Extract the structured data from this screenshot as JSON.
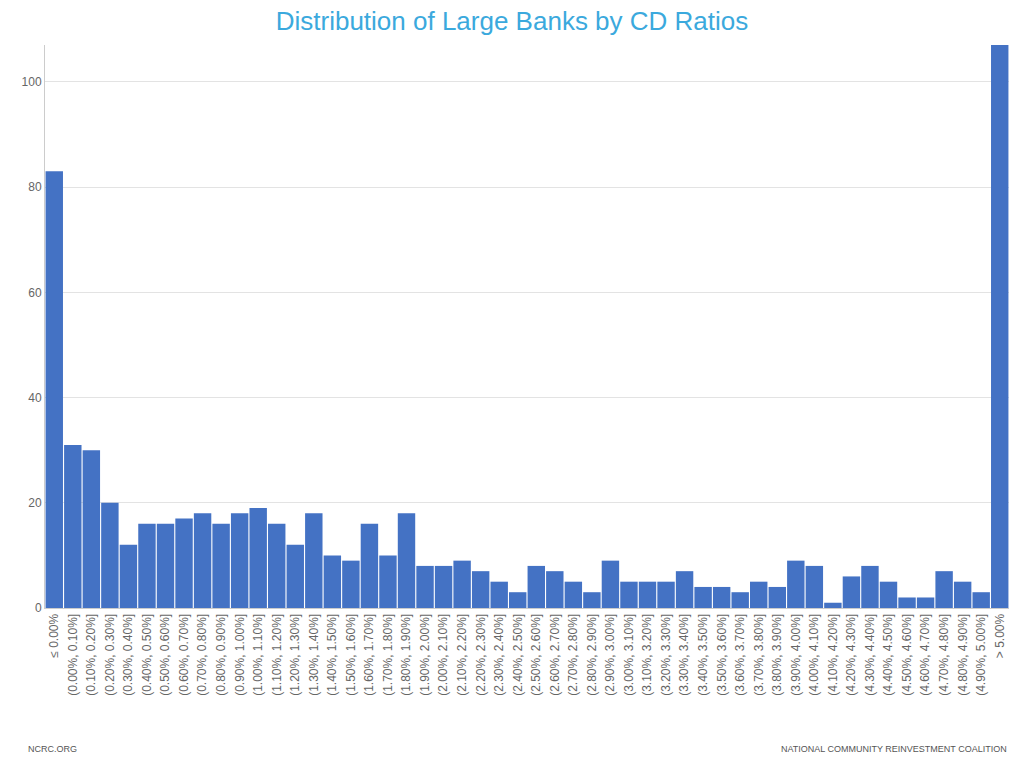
{
  "chart_data": {
    "type": "bar",
    "title": "Distribution of Large Banks by CD Ratios",
    "categories": [
      "≤ 0.00%",
      "(0.00%, 0.10%]",
      "(0.10%, 0.20%]",
      "(0.20%, 0.30%]",
      "(0.30%, 0.40%]",
      "(0.40%, 0.50%]",
      "(0.50%, 0.60%]",
      "(0.60%, 0.70%]",
      "(0.70%, 0.80%]",
      "(0.80%, 0.90%]",
      "(0.90%, 1.00%]",
      "(1.00%, 1.10%]",
      "(1.10%, 1.20%]",
      "(1.20%, 1.30%]",
      "(1.30%, 1.40%]",
      "(1.40%, 1.50%]",
      "(1.50%, 1.60%]",
      "(1.60%, 1.70%]",
      "(1.70%, 1.80%]",
      "(1.80%, 1.90%]",
      "(1.90%, 2.00%]",
      "(2.00%, 2.10%]",
      "(2.10%, 2.20%]",
      "(2.20%, 2.30%]",
      "(2.30%, 2.40%]",
      "(2.40%, 2.50%]",
      "(2.50%, 2.60%]",
      "(2.60%, 2.70%]",
      "(2.70%, 2.80%]",
      "(2.80%, 2.90%]",
      "(2.90%, 3.00%]",
      "(3.00%, 3.10%]",
      "(3.10%, 3.20%]",
      "(3.20%, 3.30%]",
      "(3.30%, 3.40%]",
      "(3.40%, 3.50%]",
      "(3.50%, 3.60%]",
      "(3.60%, 3.70%]",
      "(3.70%, 3.80%]",
      "(3.80%, 3.90%]",
      "(3.90%, 4.00%]",
      "(4.00%, 4.10%]",
      "(4.10%, 4.20%]",
      "(4.20%, 4.30%]",
      "(4.30%, 4.40%]",
      "(4.40%, 4.50%]",
      "(4.50%, 4.60%]",
      "(4.60%, 4.70%]",
      "(4.70%, 4.80%]",
      "(4.80%, 4.90%]",
      "(4.90%, 5.00%]",
      "> 5.00%"
    ],
    "values": [
      83,
      31,
      30,
      20,
      12,
      16,
      16,
      17,
      18,
      16,
      18,
      19,
      16,
      12,
      18,
      10,
      9,
      16,
      10,
      18,
      8,
      8,
      9,
      7,
      5,
      3,
      8,
      7,
      5,
      3,
      9,
      5,
      5,
      5,
      7,
      4,
      4,
      3,
      5,
      4,
      9,
      8,
      1,
      6,
      8,
      5,
      2,
      2,
      7,
      5,
      3,
      107
    ],
    "color": "#4472c4",
    "ylim": [
      0,
      107
    ],
    "yticks": [
      0,
      20,
      40,
      60,
      80,
      100
    ],
    "grid": true,
    "annotations": [
      "NCRC.ORG",
      "NATIONAL COMMUNITY REINVESTMENT COALITION"
    ]
  }
}
